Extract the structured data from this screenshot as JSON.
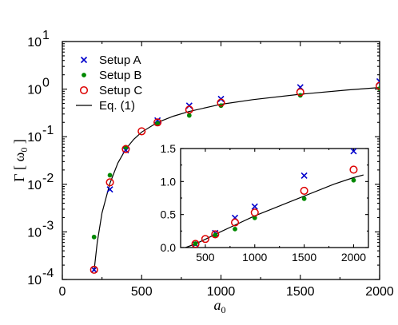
{
  "chart_data": [
    {
      "type": "scatter",
      "yscale": "log",
      "xlim": [
        0,
        2000
      ],
      "ylim": [
        0.0001,
        10
      ],
      "xticks": [
        0,
        500,
        1000,
        1500,
        2000
      ],
      "xtick_labels": [
        "0",
        "500",
        "1000",
        "1500",
        "2000"
      ],
      "ytick_labels": [
        {
          "base": "10",
          "exp": "-4"
        },
        {
          "base": "10",
          "exp": "-3"
        },
        {
          "base": "10",
          "exp": "-2"
        },
        {
          "base": "10",
          "exp": "-1"
        },
        {
          "base": "10",
          "exp": "0"
        },
        {
          "base": "10",
          "exp": "1"
        }
      ],
      "xlabel": "a",
      "xlabel_sub": "0",
      "ylabel": "Γ [ ω",
      "ylabel_sub": "0",
      "ylabel_close": " ]",
      "legend_position": "top-left",
      "series": [
        {
          "name": "Setup A",
          "marker": "x",
          "color": "#0000cc",
          "x": [
            200,
            300,
            400,
            600,
            800,
            1000,
            1500,
            2000
          ],
          "y": [
            0.00016,
            0.0078,
            0.052,
            0.22,
            0.45,
            0.62,
            1.09,
            1.45
          ]
        },
        {
          "name": "Setup B",
          "marker": "dot",
          "color": "#008800",
          "x": [
            200,
            300,
            400,
            600,
            800,
            1000,
            1500,
            2000
          ],
          "y": [
            0.00078,
            0.0155,
            0.06,
            0.19,
            0.28,
            0.45,
            0.74,
            1.02
          ]
        },
        {
          "name": "Setup C",
          "marker": "circle",
          "color": "#dd0000",
          "x": [
            200,
            300,
            400,
            500,
            600,
            800,
            1000,
            1500,
            2000
          ],
          "y": [
            0.00016,
            0.011,
            0.055,
            0.13,
            0.2,
            0.37,
            0.52,
            0.86,
            1.17
          ]
        },
        {
          "name": "Eq. (1)",
          "marker": "line",
          "color": "#000000",
          "x": [
            200,
            220,
            250,
            300,
            350,
            400,
            450,
            500,
            600,
            700,
            800,
            1000,
            1200,
            1500,
            1800,
            2000
          ],
          "y": [
            0.00015,
            0.0006,
            0.0025,
            0.0105,
            0.028,
            0.055,
            0.088,
            0.125,
            0.2,
            0.27,
            0.34,
            0.48,
            0.6,
            0.78,
            0.96,
            1.08
          ]
        }
      ]
    },
    {
      "type": "scatter",
      "yscale": "linear",
      "xlim": [
        250,
        2150
      ],
      "ylim": [
        0,
        1.5
      ],
      "xticks": [
        500,
        1000,
        1500,
        2000
      ],
      "xtick_labels": [
        "500",
        "1000",
        "1500",
        "2000"
      ],
      "yticks": [
        0,
        0.5,
        1.0,
        1.5
      ],
      "ytick_labels": [
        "0.0",
        "0.5",
        "1.0",
        "1.5"
      ],
      "series": [
        {
          "marker": "x",
          "color": "#0000cc",
          "x": [
            400,
            600,
            800,
            1000,
            1500,
            2000
          ],
          "y": [
            0.05,
            0.22,
            0.45,
            0.62,
            1.09,
            1.46
          ]
        },
        {
          "marker": "dot",
          "color": "#008800",
          "x": [
            400,
            600,
            800,
            1000,
            1500,
            2000
          ],
          "y": [
            0.06,
            0.19,
            0.28,
            0.45,
            0.74,
            1.02
          ]
        },
        {
          "marker": "circle",
          "color": "#dd0000",
          "x": [
            400,
            500,
            600,
            800,
            1000,
            1500,
            2000
          ],
          "y": [
            0.055,
            0.13,
            0.2,
            0.38,
            0.53,
            0.86,
            1.18
          ]
        },
        {
          "marker": "line",
          "color": "#000000",
          "x": [
            300,
            400,
            500,
            600,
            800,
            1000,
            1200,
            1500,
            1800,
            2000,
            2100
          ],
          "y": [
            0.0,
            0.055,
            0.125,
            0.2,
            0.34,
            0.48,
            0.6,
            0.78,
            0.96,
            1.06,
            1.1
          ]
        }
      ]
    }
  ]
}
